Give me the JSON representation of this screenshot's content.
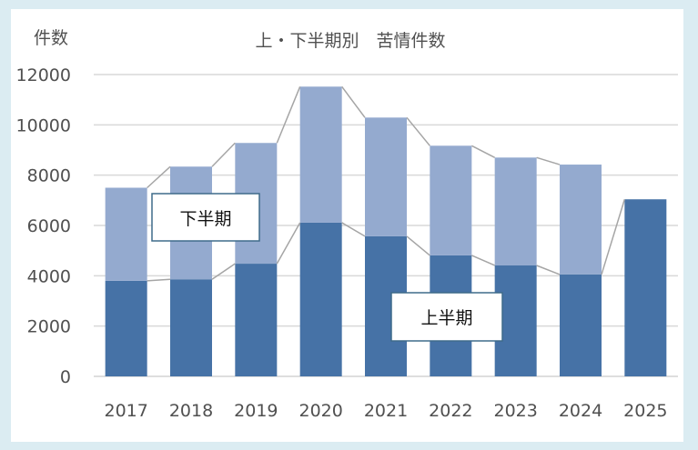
{
  "chart_data": {
    "type": "bar",
    "stacked": true,
    "title": "上・下半期別　苦情件数",
    "ylabel": "件数",
    "xlabel": "",
    "ylim": [
      0,
      12000
    ],
    "yticks": [
      0,
      2000,
      4000,
      6000,
      8000,
      10000,
      12000
    ],
    "grid": true,
    "categories": [
      "2017",
      "2018",
      "2019",
      "2020",
      "2021",
      "2022",
      "2023",
      "2024",
      "2025"
    ],
    "series": [
      {
        "name": "上半期",
        "color": "#4672a6",
        "values": [
          3800,
          3860,
          4480,
          6110,
          5570,
          4810,
          4410,
          4050,
          7040
        ]
      },
      {
        "name": "下半期",
        "color": "#94aacf",
        "values": [
          3700,
          4480,
          4800,
          5410,
          4720,
          4360,
          4290,
          4370,
          null
        ]
      }
    ],
    "series_lines": true,
    "legend": "callout labels inside plot"
  }
}
